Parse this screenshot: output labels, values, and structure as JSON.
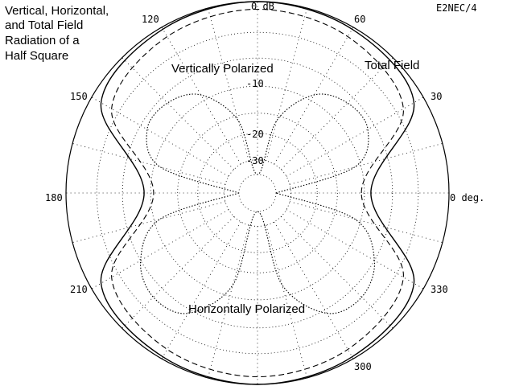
{
  "chart_data": {
    "type": "polar",
    "title_lines": [
      "Vertical, Horizontal,",
      "and Total Field",
      "Radiation of a",
      "Half Square"
    ],
    "software_label": "E2NEC/4",
    "ring_labels": [
      "0 dB",
      "-10",
      "-20",
      "-30"
    ],
    "angle_labels": [
      "0 deg.",
      "30",
      "60",
      "120",
      "150",
      "180",
      "210",
      "300",
      "330"
    ],
    "series": [
      {
        "name": "Total Field",
        "style": "solid",
        "theta": [
          0,
          30,
          60,
          90,
          120,
          150,
          180,
          210,
          240,
          270,
          300,
          330
        ],
        "r_db": [
          -9.0,
          -1.0,
          -0.2,
          0,
          -0.2,
          -1.0,
          -9.0,
          -1.0,
          -0.2,
          0,
          -0.2,
          -1.0
        ]
      },
      {
        "name": "",
        "style": "dashed",
        "theta": [
          0,
          30,
          60,
          90,
          120,
          150,
          180,
          210,
          240,
          270,
          300,
          330
        ],
        "r_db": [
          -10.5,
          -2.2,
          -1.0,
          -0.7,
          -1.0,
          -2.2,
          -10.5,
          -2.2,
          -1.0,
          -0.7,
          -1.0,
          -2.2
        ]
      },
      {
        "name": "Vertically Polarized",
        "style": "dotted",
        "theta": [
          0,
          15,
          30,
          45,
          60,
          75,
          90,
          105,
          120,
          135,
          150,
          165,
          180
        ],
        "r_db": [
          -40,
          -11,
          -7,
          -7,
          -9,
          -16,
          -40,
          -16,
          -9,
          -7,
          -7,
          -11,
          -40
        ]
      },
      {
        "name": "Horizontally Polarized",
        "style": "dotted",
        "theta": [
          180,
          195,
          210,
          225,
          240,
          255,
          270,
          285,
          300,
          315,
          330,
          345,
          360
        ],
        "r_db": [
          -40,
          -11,
          -6,
          -4.5,
          -5.5,
          -12,
          -40,
          -12,
          -5.5,
          -4.5,
          -6,
          -11,
          -40
        ]
      }
    ]
  }
}
